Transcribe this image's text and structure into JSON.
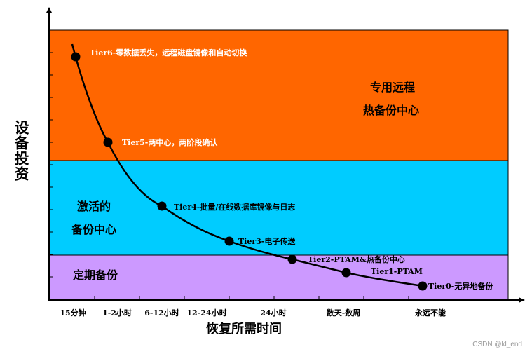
{
  "y_axis_label": "设备投资",
  "x_axis_label": "恢复所需时间",
  "x_ticks": [
    "15分钟",
    "1-2小时",
    "6-12小时",
    "12-24小时",
    "24小时",
    "数天-数周",
    "永远不能"
  ],
  "bands": [
    {
      "lines": [
        "专用远程",
        "热备份中心"
      ],
      "color": "#FF6600"
    },
    {
      "lines": [
        "激活的",
        "备份中心"
      ],
      "color": "#00CCFF"
    },
    {
      "lines": [
        "定期备份"
      ],
      "color": "#CC99FF"
    }
  ],
  "tiers": [
    {
      "label": "Tier6-零数据丢失，远程磁盘镜像和自动切换",
      "color": "#FFFFFF"
    },
    {
      "label": "Tier5-两中心，两阶段确认",
      "color": "#FFFFFF"
    },
    {
      "label": "Tier4-批量/在线数据库镜像与日志",
      "color": "#000000"
    },
    {
      "label": "Tier3-电子传送",
      "color": "#000000"
    },
    {
      "label": "Tier2-PTAM&热备份中心",
      "color": "#000000"
    },
    {
      "label": "Tier1-PTAM",
      "color": "#000000"
    },
    {
      "label": "Tier0-无异地备份",
      "color": "#000000"
    }
  ],
  "watermark": "CSDN @kl_end"
}
